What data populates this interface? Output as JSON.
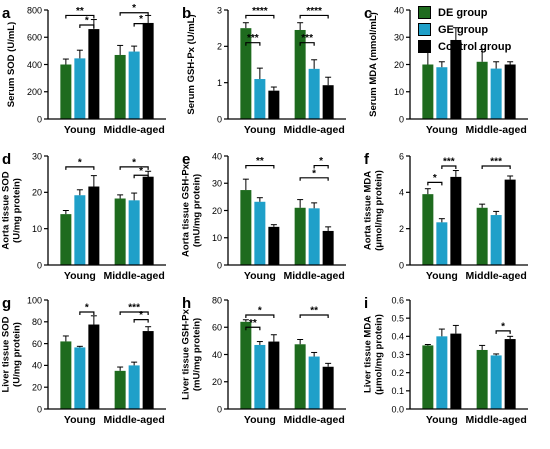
{
  "colors": {
    "DE": "#1e6b1e",
    "GE": "#1fa0c9",
    "Control": "#000000"
  },
  "legend": {
    "items": [
      {
        "key": "DE",
        "label": "DE group"
      },
      {
        "key": "GE",
        "label": "GE group"
      },
      {
        "key": "Control",
        "label": "Control group"
      }
    ]
  },
  "chart_data": [
    {
      "type": "bar",
      "letter": "a",
      "ylabel": "Serum SOD (U/mL)",
      "ylim": [
        0,
        800
      ],
      "yticks": [
        0,
        200,
        400,
        600,
        800
      ],
      "categories": [
        "Young",
        "Middle-aged"
      ],
      "series": [
        {
          "name": "DE group",
          "values": [
            400,
            470
          ],
          "errors": [
            40,
            70
          ]
        },
        {
          "name": "GE group",
          "values": [
            445,
            495
          ],
          "errors": [
            60,
            40
          ]
        },
        {
          "name": "Control group",
          "values": [
            660,
            705
          ],
          "errors": [
            70,
            55
          ]
        }
      ],
      "sig": [
        {
          "g": 0,
          "a": 0,
          "b": 2,
          "y": 760,
          "label": "**"
        },
        {
          "g": 0,
          "a": 1,
          "b": 2,
          "y": 690,
          "label": "*"
        },
        {
          "g": 1,
          "a": 0,
          "b": 2,
          "y": 780,
          "label": "*"
        },
        {
          "g": 1,
          "a": 1,
          "b": 2,
          "y": 700,
          "label": "*"
        }
      ]
    },
    {
      "type": "bar",
      "letter": "b",
      "ylabel": "Serum GSH-Px (U/mL)",
      "ylim": [
        0,
        3
      ],
      "yticks": [
        0,
        1,
        2,
        3
      ],
      "categories": [
        "Young",
        "Middle-aged"
      ],
      "series": [
        {
          "name": "DE group",
          "values": [
            2.5,
            2.45
          ],
          "errors": [
            0.15,
            0.2
          ]
        },
        {
          "name": "GE group",
          "values": [
            1.1,
            1.38
          ],
          "errors": [
            0.3,
            0.25
          ]
        },
        {
          "name": "Control group",
          "values": [
            0.78,
            0.93
          ],
          "errors": [
            0.1,
            0.22
          ]
        }
      ],
      "sig": [
        {
          "g": 0,
          "a": 0,
          "b": 2,
          "y": 2.85,
          "label": "****"
        },
        {
          "g": 0,
          "a": 0,
          "b": 1,
          "y": 2.1,
          "label": "***"
        },
        {
          "g": 1,
          "a": 0,
          "b": 2,
          "y": 2.85,
          "label": "****"
        },
        {
          "g": 1,
          "a": 0,
          "b": 1,
          "y": 2.1,
          "label": "***"
        }
      ]
    },
    {
      "type": "bar",
      "letter": "c",
      "ylabel": "Serum MDA (mmol/mL)",
      "ylim": [
        0,
        40
      ],
      "yticks": [
        0,
        10,
        20,
        30,
        40
      ],
      "categories": [
        "Young",
        "Middle-aged"
      ],
      "series": [
        {
          "name": "DE group",
          "values": [
            20,
            21
          ],
          "errors": [
            6,
            4.5
          ]
        },
        {
          "name": "GE group",
          "values": [
            19,
            18.5
          ],
          "errors": [
            2,
            2.5
          ]
        },
        {
          "name": "Control group",
          "values": [
            29,
            20
          ],
          "errors": [
            4.5,
            1
          ]
        }
      ],
      "sig": []
    },
    {
      "type": "bar",
      "letter": "d",
      "ylabel": "Aorta tissue SOD\n(U/mg protein)",
      "ylim": [
        0,
        30
      ],
      "yticks": [
        0,
        10,
        20,
        30
      ],
      "categories": [
        "Young",
        "Middle-aged"
      ],
      "series": [
        {
          "name": "DE group",
          "values": [
            14,
            18.3
          ],
          "errors": [
            1,
            1
          ]
        },
        {
          "name": "GE group",
          "values": [
            19.2,
            17.8
          ],
          "errors": [
            1.5,
            2
          ]
        },
        {
          "name": "Control group",
          "values": [
            21.6,
            24.3
          ],
          "errors": [
            3,
            1.5
          ]
        }
      ],
      "sig": [
        {
          "g": 0,
          "a": 0,
          "b": 2,
          "y": 27,
          "label": "*"
        },
        {
          "g": 1,
          "a": 0,
          "b": 2,
          "y": 27,
          "label": "*"
        },
        {
          "g": 1,
          "a": 1,
          "b": 2,
          "y": 24.7,
          "label": "*"
        }
      ]
    },
    {
      "type": "bar",
      "letter": "e",
      "ylabel": "Aorta tissue GSH-Px\n(mU/mg protein)",
      "ylim": [
        0,
        40
      ],
      "yticks": [
        0,
        10,
        20,
        30,
        40
      ],
      "categories": [
        "Young",
        "Middle-aged"
      ],
      "series": [
        {
          "name": "DE group",
          "values": [
            27.5,
            21
          ],
          "errors": [
            4,
            3
          ]
        },
        {
          "name": "GE group",
          "values": [
            23.2,
            20.8
          ],
          "errors": [
            1.5,
            2
          ]
        },
        {
          "name": "Control group",
          "values": [
            14,
            12.5
          ],
          "errors": [
            0.8,
            1.5
          ]
        }
      ],
      "sig": [
        {
          "g": 0,
          "a": 0,
          "b": 2,
          "y": 36.5,
          "label": "**"
        },
        {
          "g": 1,
          "a": 0,
          "b": 2,
          "y": 32,
          "label": "*"
        },
        {
          "g": 1,
          "a": 1,
          "b": 2,
          "y": 36.5,
          "label": "*"
        }
      ]
    },
    {
      "type": "bar",
      "letter": "f",
      "ylabel": "Aorta tissue MDA\n(μmol/mg protein)",
      "ylim": [
        0,
        6
      ],
      "yticks": [
        0,
        2,
        4,
        6
      ],
      "categories": [
        "Young",
        "Middle-aged"
      ],
      "series": [
        {
          "name": "DE group",
          "values": [
            3.9,
            3.15
          ],
          "errors": [
            0.3,
            0.2
          ]
        },
        {
          "name": "GE group",
          "values": [
            2.35,
            2.75
          ],
          "errors": [
            0.2,
            0.2
          ]
        },
        {
          "name": "Control group",
          "values": [
            4.85,
            4.7
          ],
          "errors": [
            0.35,
            0.2
          ]
        }
      ],
      "sig": [
        {
          "g": 0,
          "a": 0,
          "b": 1,
          "y": 4.55,
          "label": "*"
        },
        {
          "g": 0,
          "a": 1,
          "b": 2,
          "y": 5.45,
          "label": "***"
        },
        {
          "g": 1,
          "a": 0,
          "b": 2,
          "y": 5.45,
          "label": "***"
        }
      ]
    },
    {
      "type": "bar",
      "letter": "g",
      "ylabel": "Liver tissue SOD\n(U/mg protein)",
      "ylim": [
        0,
        100
      ],
      "yticks": [
        0,
        20,
        40,
        60,
        80,
        100
      ],
      "categories": [
        "Young",
        "Middle-aged"
      ],
      "series": [
        {
          "name": "DE group",
          "values": [
            62,
            35
          ],
          "errors": [
            5,
            3.5
          ]
        },
        {
          "name": "GE group",
          "values": [
            56.5,
            40
          ],
          "errors": [
            1,
            3
          ]
        },
        {
          "name": "Control group",
          "values": [
            77.5,
            71.5
          ],
          "errors": [
            8,
            4
          ]
        }
      ],
      "sig": [
        {
          "g": 0,
          "a": 1,
          "b": 2,
          "y": 89,
          "label": "*"
        },
        {
          "g": 1,
          "a": 0,
          "b": 2,
          "y": 89,
          "label": "***"
        },
        {
          "g": 1,
          "a": 1,
          "b": 2,
          "y": 82,
          "label": "*"
        }
      ]
    },
    {
      "type": "bar",
      "letter": "h",
      "ylabel": "Liver tissue GSH-Px\n(mU/mg protein)",
      "ylim": [
        0,
        80
      ],
      "yticks": [
        0,
        20,
        40,
        60,
        80
      ],
      "categories": [
        "Young",
        "Middle-aged"
      ],
      "series": [
        {
          "name": "DE group",
          "values": [
            64,
            47.5
          ],
          "errors": [
            1.5,
            3.5
          ]
        },
        {
          "name": "GE group",
          "values": [
            47,
            38.5
          ],
          "errors": [
            2.5,
            3
          ]
        },
        {
          "name": "Control group",
          "values": [
            49.5,
            31
          ],
          "errors": [
            5,
            2.5
          ]
        }
      ],
      "sig": [
        {
          "g": 0,
          "a": 0,
          "b": 1,
          "y": 60,
          "label": "**"
        },
        {
          "g": 0,
          "a": 0,
          "b": 2,
          "y": 69,
          "label": "*"
        },
        {
          "g": 1,
          "a": 0,
          "b": 2,
          "y": 69,
          "label": "**"
        }
      ]
    },
    {
      "type": "bar",
      "letter": "i",
      "ylabel": "Liver tissue MDA\n(μmol/mg protein)",
      "ylim": [
        0.0,
        0.6
      ],
      "yticks": [
        "0.0",
        "0.1",
        "0.2",
        "0.3",
        "0.4",
        "0.5",
        "0.6"
      ],
      "categories": [
        "Young",
        "Middle-aged"
      ],
      "series": [
        {
          "name": "DE group",
          "values": [
            0.35,
            0.325
          ],
          "errors": [
            0.005,
            0.025
          ]
        },
        {
          "name": "GE group",
          "values": [
            0.4,
            0.295
          ],
          "errors": [
            0.04,
            0.008
          ]
        },
        {
          "name": "Control group",
          "values": [
            0.415,
            0.385
          ],
          "errors": [
            0.045,
            0.015
          ]
        }
      ],
      "sig": [
        {
          "g": 1,
          "a": 1,
          "b": 2,
          "y": 0.43,
          "label": "*"
        }
      ]
    }
  ]
}
